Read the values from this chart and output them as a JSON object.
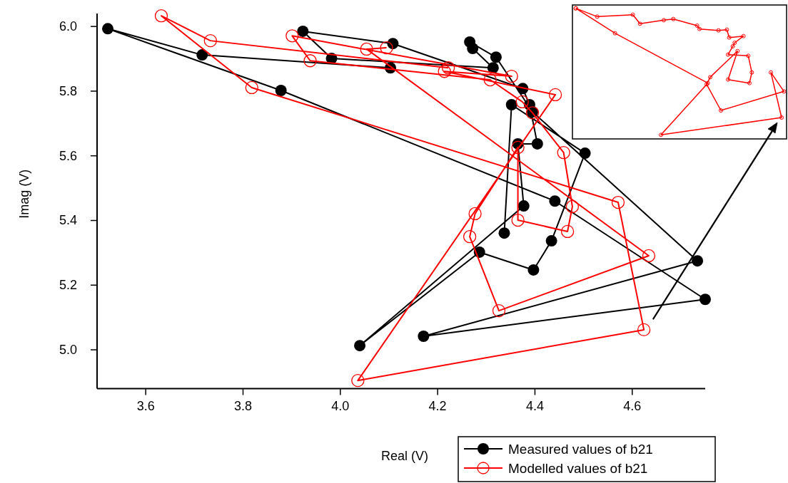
{
  "chart_data": [
    {
      "type": "line",
      "xlabel": "Real (V)",
      "ylabel": "Imag (V)",
      "xlim": [
        3.5,
        4.75
      ],
      "ylim": [
        4.88,
        6.04
      ],
      "xticks": [
        {
          "value": 3.6,
          "label": "3.6"
        },
        {
          "value": 3.8,
          "label": "3.8"
        },
        {
          "value": 4.0,
          "label": "4.0"
        },
        {
          "value": 4.2,
          "label": "4.2"
        },
        {
          "value": 4.4,
          "label": "4.4"
        },
        {
          "value": 4.6,
          "label": "4.6"
        }
      ],
      "yticks": [
        {
          "value": 5.0,
          "label": "5.0"
        },
        {
          "value": 5.2,
          "label": "5.2"
        },
        {
          "value": 5.4,
          "label": "5.4"
        },
        {
          "value": 5.6,
          "label": "5.6"
        },
        {
          "value": 5.8,
          "label": "5.8"
        },
        {
          "value": 6.0,
          "label": "6.0"
        }
      ],
      "grid": false,
      "legend": "bottom right",
      "marker": "circle",
      "line_style": "solid",
      "series": [
        {
          "name": "Measured values of b21",
          "color": "#000000",
          "x": [
            4.103,
            3.716,
            3.522,
            3.878,
            4.441,
            4.75,
            4.171,
            4.734,
            4.395,
            4.32,
            4.266,
            4.272,
            4.314,
            3.982,
            3.923,
            4.108,
            4.375,
            4.389,
            4.405,
            4.365,
            4.377,
            4.04,
            4.286,
            4.397,
            4.434,
            4.503,
            4.352,
            4.337
          ],
          "values": [
            5.872,
            5.912,
            5.993,
            5.802,
            5.46,
            5.156,
            5.042,
            5.275,
            5.736,
            5.905,
            5.952,
            5.932,
            5.872,
            5.901,
            5.985,
            5.947,
            5.808,
            5.758,
            5.637,
            5.637,
            5.445,
            5.013,
            5.302,
            5.247,
            5.337,
            5.608,
            5.758,
            5.361
          ]
        },
        {
          "name": "Modelled values of b21",
          "color": "#ff0000",
          "x": [
            4.222,
            3.733,
            3.632,
            3.818,
            4.571,
            4.624,
            4.036,
            4.442,
            4.214,
            4.352,
            3.901,
            3.938,
            4.308,
            4.374,
            4.395,
            4.459,
            4.477,
            4.467,
            4.365,
            4.365,
            4.277,
            4.266,
            4.326,
            4.634,
            4.054,
            4.095
          ],
          "values": [
            5.872,
            5.956,
            6.033,
            5.811,
            5.456,
            5.062,
            4.905,
            5.789,
            5.861,
            5.846,
            5.971,
            5.894,
            5.835,
            5.767,
            5.733,
            5.61,
            5.443,
            5.366,
            5.401,
            5.626,
            5.421,
            5.35,
            5.121,
            5.291,
            5.93,
            5.934
          ]
        }
      ]
    }
  ]
}
